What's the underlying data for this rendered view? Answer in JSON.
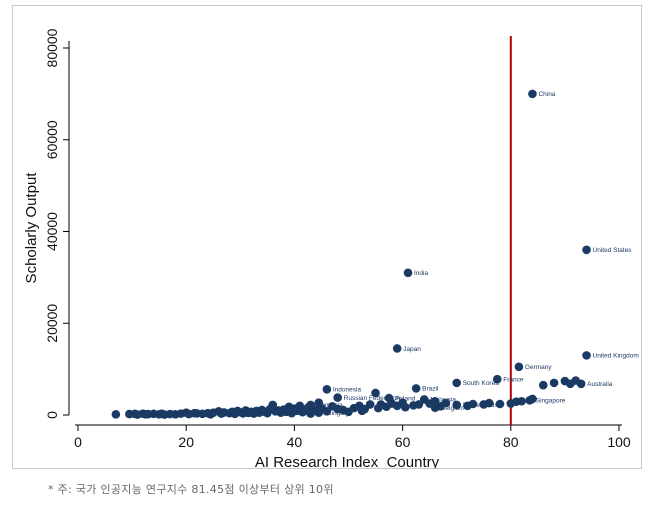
{
  "chart_data": {
    "type": "scatter",
    "title": "",
    "xlabel": "AI Research Index_Country",
    "ylabel": "Scholarly Output",
    "xlim": [
      0,
      100
    ],
    "ylim": [
      0,
      80000
    ],
    "x_ticks": [
      0,
      20,
      40,
      60,
      80,
      100
    ],
    "y_ticks": [
      0,
      20000,
      40000,
      60000,
      80000
    ],
    "reference_line": {
      "axis": "x",
      "value": 80,
      "color": "#b30000"
    },
    "labeled_points": [
      {
        "label": "China",
        "x": 84,
        "y": 70000
      },
      {
        "label": "United States",
        "x": 94,
        "y": 36000
      },
      {
        "label": "India",
        "x": 61,
        "y": 31000
      },
      {
        "label": "Japan",
        "x": 59,
        "y": 14500
      },
      {
        "label": "United Kingdom",
        "x": 94,
        "y": 13000
      },
      {
        "label": "Germany",
        "x": 81.5,
        "y": 10500
      },
      {
        "label": "France",
        "x": 77.5,
        "y": 7800
      },
      {
        "label": "South Korea",
        "x": 70,
        "y": 7000
      },
      {
        "label": "Brazil",
        "x": 62.5,
        "y": 5800
      },
      {
        "label": "Indonesia",
        "x": 46,
        "y": 5600
      },
      {
        "label": "Australia",
        "x": 93,
        "y": 6800
      },
      {
        "label": "Russian Federation",
        "x": 48,
        "y": 3800
      },
      {
        "label": "Poland",
        "x": 57.5,
        "y": 3700
      },
      {
        "label": "Malaysia",
        "x": 64,
        "y": 3400
      },
      {
        "label": "Singapore",
        "x": 83.5,
        "y": 3200
      },
      {
        "label": "Romania",
        "x": 43,
        "y": 2200
      },
      {
        "label": "Netherlands",
        "x": 70,
        "y": 2200
      },
      {
        "label": "Belgium",
        "x": 66,
        "y": 1600
      },
      {
        "label": "Hungary",
        "x": 44.5,
        "y": 500
      }
    ],
    "unlabeled_points": [
      [
        7,
        150
      ],
      [
        9.5,
        200
      ],
      [
        10.5,
        250
      ],
      [
        11,
        100
      ],
      [
        12,
        300
      ],
      [
        12.5,
        150
      ],
      [
        13,
        200
      ],
      [
        14,
        250
      ],
      [
        15,
        150
      ],
      [
        15.5,
        300
      ],
      [
        16,
        100
      ],
      [
        17,
        200
      ],
      [
        18,
        150
      ],
      [
        19,
        300
      ],
      [
        20,
        500
      ],
      [
        20.5,
        200
      ],
      [
        21.5,
        400
      ],
      [
        22,
        350
      ],
      [
        23,
        250
      ],
      [
        24,
        400
      ],
      [
        24.5,
        150
      ],
      [
        25,
        500
      ],
      [
        26,
        800
      ],
      [
        26.5,
        300
      ],
      [
        27,
        550
      ],
      [
        28,
        400
      ],
      [
        28.5,
        700
      ],
      [
        29,
        250
      ],
      [
        29.5,
        900
      ],
      [
        30,
        600
      ],
      [
        30.5,
        350
      ],
      [
        31,
        1000
      ],
      [
        31.5,
        450
      ],
      [
        32,
        700
      ],
      [
        32.5,
        300
      ],
      [
        33,
        900
      ],
      [
        33.5,
        500
      ],
      [
        34,
        1100
      ],
      [
        34.5,
        700
      ],
      [
        35,
        400
      ],
      [
        35.5,
        1300
      ],
      [
        36,
        2200
      ],
      [
        36.5,
        800
      ],
      [
        37,
        1000
      ],
      [
        37.5,
        500
      ],
      [
        38,
        1200
      ],
      [
        38.5,
        700
      ],
      [
        39,
        1800
      ],
      [
        39.5,
        400
      ],
      [
        40,
        1400
      ],
      [
        40.5,
        900
      ],
      [
        41,
        2000
      ],
      [
        41.5,
        600
      ],
      [
        42,
        1000
      ],
      [
        42.5,
        1600
      ],
      [
        43,
        300
      ],
      [
        44,
        1200
      ],
      [
        44.5,
        2700
      ],
      [
        45,
        1500
      ],
      [
        46,
        800
      ],
      [
        47,
        1900
      ],
      [
        48,
        1300
      ],
      [
        49,
        1100
      ],
      [
        50,
        700
      ],
      [
        51,
        1500
      ],
      [
        52,
        2000
      ],
      [
        52.5,
        900
      ],
      [
        53,
        1300
      ],
      [
        54,
        2300
      ],
      [
        55,
        4800
      ],
      [
        55.5,
        1500
      ],
      [
        56,
        2300
      ],
      [
        57,
        1800
      ],
      [
        58,
        2500
      ],
      [
        59,
        2000
      ],
      [
        60,
        2700
      ],
      [
        60.5,
        1700
      ],
      [
        62,
        2100
      ],
      [
        63,
        2300
      ],
      [
        65,
        2500
      ],
      [
        66,
        3000
      ],
      [
        67,
        1900
      ],
      [
        68,
        2600
      ],
      [
        72,
        2000
      ],
      [
        73,
        2400
      ],
      [
        75,
        2300
      ],
      [
        76,
        2600
      ],
      [
        78,
        2400
      ],
      [
        80,
        2500
      ],
      [
        81,
        2900
      ],
      [
        82,
        3000
      ],
      [
        84,
        3500
      ],
      [
        86,
        6500
      ],
      [
        88,
        7000
      ],
      [
        90,
        7400
      ],
      [
        91,
        6800
      ],
      [
        92,
        7500
      ]
    ]
  },
  "footnote": "* 주: 국가 인공지능 연구지수 81.45점 이상부터 상위 10위"
}
